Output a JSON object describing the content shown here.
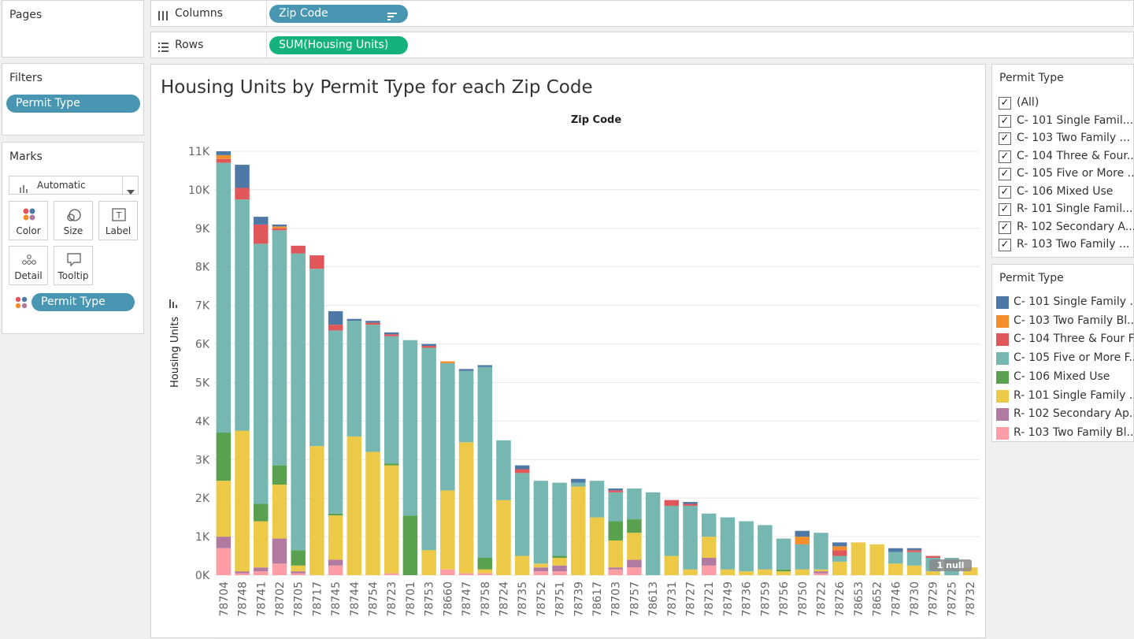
{
  "pages": {
    "label": "Pages"
  },
  "columns_shelf": {
    "label": "Columns",
    "pill": "Zip Code"
  },
  "rows_shelf": {
    "label": "Rows",
    "pill": "SUM(Housing Units)"
  },
  "filters": {
    "label": "Filters",
    "pill": "Permit Type"
  },
  "marks": {
    "label": "Marks",
    "type_selected": "Automatic",
    "buttons": [
      "Color",
      "Size",
      "Label",
      "Detail",
      "Tooltip"
    ],
    "color_pill": "Permit Type"
  },
  "filter_card": {
    "title": "Permit Type",
    "items": [
      {
        "label": "(All)",
        "checked": true
      },
      {
        "label": "C- 101 Single Famil...",
        "checked": true
      },
      {
        "label": "C- 103 Two Family ...",
        "checked": true
      },
      {
        "label": "C- 104 Three & Four...",
        "checked": true
      },
      {
        "label": "C- 105 Five or More ...",
        "checked": true
      },
      {
        "label": "C- 106 Mixed Use",
        "checked": true
      },
      {
        "label": "R- 101 Single Famil...",
        "checked": true
      },
      {
        "label": "R- 102 Secondary A...",
        "checked": true
      },
      {
        "label": "R- 103 Two Family ...",
        "checked": true
      }
    ]
  },
  "legend": {
    "title": "Permit Type",
    "items": [
      {
        "label": "C- 101 Single Family ..",
        "color": "#4e79a7"
      },
      {
        "label": "C- 103 Two Family Bl..",
        "color": "#f28e2b"
      },
      {
        "label": "C- 104 Three & Four F..",
        "color": "#e15759"
      },
      {
        "label": "C- 105 Five or More F..",
        "color": "#76b7b2"
      },
      {
        "label": "C- 106 Mixed Use",
        "color": "#59a14f"
      },
      {
        "label": "R- 101 Single Family ..",
        "color": "#edc948"
      },
      {
        "label": "R- 102 Secondary Ap..",
        "color": "#b07aa1"
      },
      {
        "label": "R- 103 Two Family Bl..",
        "color": "#ff9da7"
      }
    ]
  },
  "chart_data": {
    "type": "bar",
    "stacked": true,
    "title": "Housing Units by Permit Type for each Zip Code",
    "column_header": "Zip Code",
    "ylabel": "Housing Units",
    "ylim": [
      0,
      11000
    ],
    "yticks": [
      "0K",
      "1K",
      "2K",
      "3K",
      "4K",
      "5K",
      "6K",
      "7K",
      "8K",
      "9K",
      "10K",
      "11K"
    ],
    "null_indicator": "1 null",
    "categories": [
      "78704",
      "78748",
      "78741",
      "78702",
      "78705",
      "78717",
      "78745",
      "78744",
      "78754",
      "78723",
      "78701",
      "78753",
      "78660",
      "78747",
      "78758",
      "78724",
      "78735",
      "78752",
      "78751",
      "78739",
      "78617",
      "78703",
      "78757",
      "78613",
      "78731",
      "78727",
      "78721",
      "78749",
      "78736",
      "78759",
      "78756",
      "78750",
      "78722",
      "78726",
      "78653",
      "78652",
      "78746",
      "78730",
      "78729",
      "78725",
      "78732"
    ],
    "stack_order_bottom_to_top": [
      "R- 103",
      "R- 102",
      "R- 101",
      "C- 106",
      "C- 105",
      "C- 104",
      "C- 103",
      "C- 101"
    ],
    "series": [
      {
        "name": "R- 103 Two Family Bl..",
        "color": "#ff9da7",
        "values": [
          700,
          50,
          100,
          300,
          50,
          0,
          250,
          0,
          0,
          50,
          0,
          0,
          150,
          50,
          50,
          0,
          0,
          100,
          100,
          0,
          0,
          150,
          200,
          0,
          0,
          0,
          250,
          0,
          0,
          0,
          0,
          0,
          50,
          0,
          0,
          0,
          0,
          0,
          0,
          0,
          0
        ]
      },
      {
        "name": "R- 102 Secondary Ap..",
        "color": "#b07aa1",
        "values": [
          300,
          50,
          100,
          650,
          50,
          0,
          150,
          0,
          0,
          0,
          0,
          0,
          0,
          0,
          0,
          0,
          0,
          100,
          150,
          0,
          0,
          50,
          200,
          0,
          0,
          0,
          200,
          0,
          0,
          0,
          0,
          0,
          50,
          0,
          0,
          0,
          0,
          0,
          0,
          0,
          0
        ]
      },
      {
        "name": "R- 101 Single Family ..",
        "color": "#edc948",
        "values": [
          1450,
          3650,
          1200,
          1400,
          150,
          3350,
          1150,
          3600,
          3200,
          2800,
          0,
          650,
          2050,
          3400,
          100,
          1950,
          500,
          100,
          200,
          2300,
          1500,
          700,
          700,
          0,
          500,
          150,
          550,
          150,
          100,
          150,
          100,
          150,
          50,
          350,
          850,
          800,
          300,
          250,
          100,
          0,
          200
        ]
      },
      {
        "name": "C- 106 Mixed Use",
        "color": "#59a14f",
        "values": [
          1250,
          0,
          450,
          500,
          400,
          0,
          50,
          0,
          0,
          50,
          1550,
          0,
          0,
          0,
          300,
          0,
          0,
          0,
          50,
          0,
          0,
          500,
          350,
          0,
          0,
          0,
          0,
          0,
          0,
          0,
          50,
          0,
          0,
          0,
          0,
          0,
          0,
          0,
          0,
          0,
          0
        ]
      },
      {
        "name": "C- 105 Five or More F..",
        "color": "#76b7b2",
        "values": [
          7000,
          6000,
          6750,
          6100,
          7700,
          4600,
          4750,
          3000,
          3300,
          3300,
          4550,
          5250,
          3300,
          1850,
          4950,
          1550,
          2150,
          2150,
          1900,
          100,
          950,
          750,
          800,
          2150,
          1300,
          1650,
          600,
          1350,
          1300,
          1150,
          800,
          650,
          950,
          150,
          0,
          0,
          300,
          350,
          350,
          450,
          0
        ]
      },
      {
        "name": "C- 104 Three & Four F..",
        "color": "#e15759",
        "values": [
          100,
          300,
          500,
          50,
          200,
          350,
          150,
          0,
          50,
          50,
          0,
          50,
          0,
          0,
          0,
          0,
          100,
          0,
          0,
          0,
          0,
          50,
          0,
          0,
          150,
          50,
          0,
          0,
          0,
          0,
          0,
          0,
          0,
          150,
          0,
          0,
          0,
          50,
          50,
          0,
          0
        ]
      },
      {
        "name": "C- 103 Two Family Bl..",
        "color": "#f28e2b",
        "values": [
          100,
          0,
          0,
          50,
          0,
          0,
          0,
          0,
          0,
          0,
          0,
          0,
          50,
          0,
          0,
          0,
          0,
          0,
          0,
          0,
          0,
          0,
          0,
          0,
          0,
          0,
          0,
          0,
          0,
          0,
          0,
          200,
          0,
          100,
          0,
          0,
          0,
          0,
          0,
          0,
          0
        ]
      },
      {
        "name": "C- 101 Single Family ..",
        "color": "#4e79a7",
        "values": [
          100,
          600,
          200,
          50,
          0,
          0,
          350,
          50,
          50,
          50,
          0,
          50,
          0,
          50,
          50,
          0,
          100,
          0,
          0,
          100,
          0,
          50,
          0,
          0,
          0,
          50,
          0,
          0,
          0,
          0,
          0,
          150,
          0,
          100,
          0,
          0,
          100,
          50,
          0,
          0,
          0
        ]
      }
    ]
  }
}
